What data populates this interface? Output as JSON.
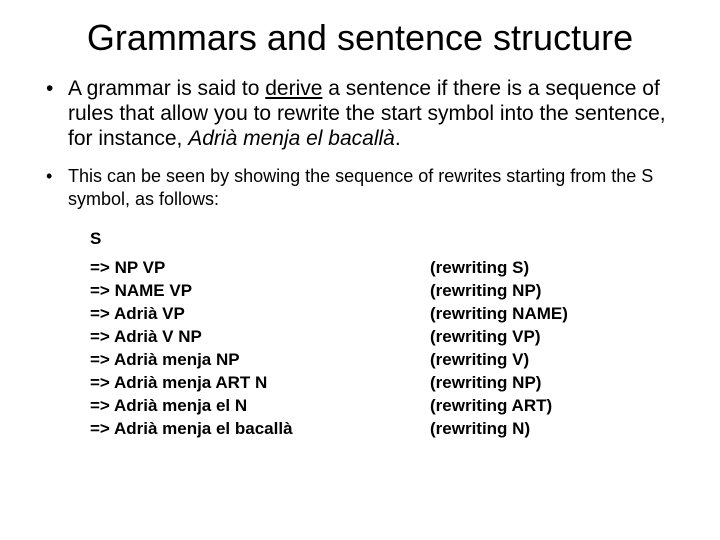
{
  "title": "Grammars and sentence structure",
  "bullet1_pre": "A grammar is said to ",
  "bullet1_underline": "derive",
  "bullet1_mid": " a sentence if there is a sequence of rules that allow you to rewrite the start symbol into the sentence, for instance, ",
  "bullet1_italic": "Adrià menja el bacallà",
  "bullet1_post": ".",
  "bullet2": "This can be seen by showing the sequence of rewrites starting from the S symbol, as follows:",
  "derivation": {
    "start": "S",
    "rows": [
      {
        "left": "=> NP VP",
        "right": "(rewriting S)"
      },
      {
        "left": "=> NAME VP",
        "right": "(rewriting NP)"
      },
      {
        "left": "=> Adrià VP",
        "right": "(rewriting NAME)"
      },
      {
        "left": "=> Adrià V NP",
        "right": "(rewriting VP)"
      },
      {
        "left": "=> Adrià menja NP",
        "right": "(rewriting V)"
      },
      {
        "left": "=> Adrià menja ART N",
        "right": "(rewriting NP)"
      },
      {
        "left": "=> Adrià menja el N",
        "right": "(rewriting ART)"
      },
      {
        "left": "=> Adrià menja el bacallà",
        "right": "(rewriting N)"
      }
    ]
  },
  "style": {
    "background_color": "#ffffff",
    "text_color": "#000000",
    "title_fontsize": 36,
    "body_fontsize": 21,
    "secondary_fontsize": 18,
    "derivation_fontsize": 17
  }
}
